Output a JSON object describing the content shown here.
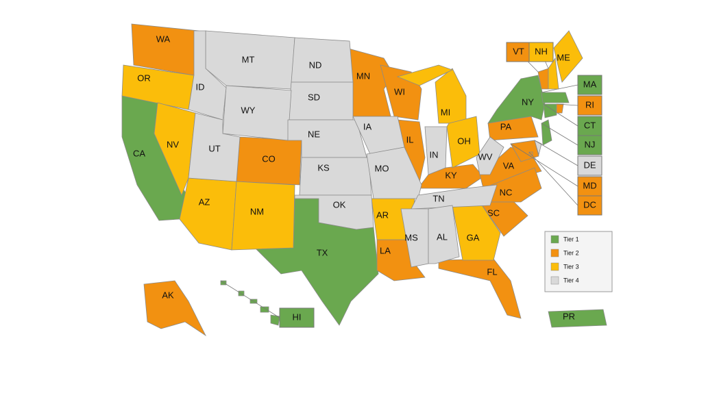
{
  "tiers": [
    {
      "label": "Tier 1",
      "color": "#6aa84f",
      "states": [
        "CA",
        "TX",
        "NY",
        "MA",
        "CT",
        "NJ",
        "HI",
        "PR"
      ]
    },
    {
      "label": "Tier 2",
      "color": "#f29111",
      "states": [
        "WA",
        "MN",
        "WI",
        "IL",
        "CO",
        "KY",
        "PA",
        "VA",
        "NC",
        "SC",
        "LA",
        "FL",
        "AK",
        "VT",
        "RI",
        "MD",
        "DC"
      ]
    },
    {
      "label": "Tier 3",
      "color": "#fbbd0a",
      "states": [
        "OR",
        "NV",
        "AZ",
        "NM",
        "AR",
        "MI",
        "OH",
        "GA",
        "NH",
        "ME"
      ]
    },
    {
      "label": "Tier 4",
      "color": "#d9d9d9",
      "states": [
        "MT",
        "ND",
        "SD",
        "WY",
        "ID",
        "UT",
        "NE",
        "KS",
        "OK",
        "IA",
        "MO",
        "IN",
        "WV",
        "TN",
        "MS",
        "AL",
        "DE"
      ]
    }
  ]
}
